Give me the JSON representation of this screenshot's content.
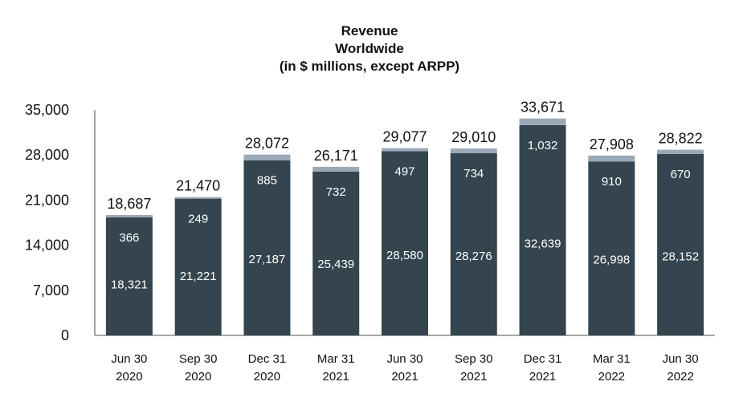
{
  "title": {
    "line1": "Revenue",
    "line2": "Worldwide",
    "line3": "(in $ millions, except ARPP)"
  },
  "colors": {
    "base": "#34454f",
    "top": "#9aa9b7",
    "axis": "#888888",
    "text": "#111111"
  },
  "chart_data": {
    "type": "bar",
    "stacked": true,
    "title": "Revenue Worldwide (in $ millions, except ARPP)",
    "xlabel": "",
    "ylabel": "",
    "ylim": [
      0,
      35000
    ],
    "yticks": [
      "0",
      "7,000",
      "14,000",
      "21,000",
      "28,000",
      "35,000"
    ],
    "ytick_values": [
      0,
      7000,
      14000,
      21000,
      28000,
      35000
    ],
    "grid": false,
    "categories": [
      [
        "Jun 30",
        "2020"
      ],
      [
        "Sep 30",
        "2020"
      ],
      [
        "Dec 31",
        "2020"
      ],
      [
        "Mar 31",
        "2021"
      ],
      [
        "Jun 30",
        "2021"
      ],
      [
        "Sep 30",
        "2021"
      ],
      [
        "Dec 31",
        "2021"
      ],
      [
        "Mar 31",
        "2022"
      ],
      [
        "Jun 30",
        "2022"
      ]
    ],
    "series": [
      {
        "name": "base",
        "values": [
          18321,
          21221,
          27187,
          25439,
          28580,
          28276,
          32639,
          26998,
          28152
        ],
        "labels": [
          "18,321",
          "21,221",
          "27,187",
          "25,439",
          "28,580",
          "28,276",
          "32,639",
          "26,998",
          "28,152"
        ]
      },
      {
        "name": "top",
        "values": [
          366,
          249,
          885,
          732,
          497,
          734,
          1032,
          910,
          670
        ],
        "labels": [
          "366",
          "249",
          "885",
          "732",
          "497",
          "734",
          "1,032",
          "910",
          "670"
        ]
      }
    ],
    "totals": [
      18687,
      21470,
      28072,
      26171,
      29077,
      29010,
      33671,
      27908,
      28822
    ],
    "total_labels": [
      "18,687",
      "21,470",
      "28,072",
      "26,171",
      "29,077",
      "29,010",
      "33,671",
      "27,908",
      "28,822"
    ]
  }
}
